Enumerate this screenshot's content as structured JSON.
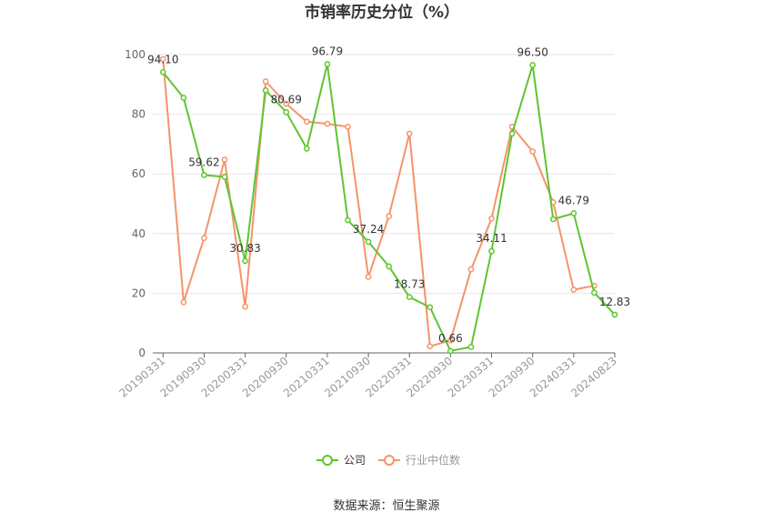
{
  "chart_data": {
    "type": "line",
    "title": "市销率历史分位（%）",
    "xlabel": "",
    "ylabel": "",
    "ylim": [
      0,
      100
    ],
    "yticks": [
      0,
      20,
      40,
      60,
      80,
      100
    ],
    "grid": true,
    "legend_position": "bottom",
    "x_tick_labels": [
      "20190331",
      "20190930",
      "20200331",
      "20200930",
      "20210331",
      "20210930",
      "20220331",
      "20220930",
      "20230331",
      "20230930",
      "20240331",
      "20240823"
    ],
    "x": [
      "20190331",
      "20190630",
      "20190930",
      "20191231",
      "20200331",
      "20200630",
      "20200930",
      "20201231",
      "20210331",
      "20210630",
      "20210930",
      "20211231",
      "20220331",
      "20220630",
      "20220930",
      "20221231",
      "20230331",
      "20230630",
      "20230930",
      "20231231",
      "20240331",
      "20240630",
      "20240823"
    ],
    "series": [
      {
        "name": "公司",
        "color": "#5ec52f",
        "values": [
          94.1,
          85.5,
          59.62,
          59.0,
          30.83,
          88.0,
          80.69,
          68.5,
          96.79,
          44.5,
          37.24,
          29.0,
          18.73,
          15.3,
          0.66,
          2.0,
          34.11,
          73.5,
          96.5,
          44.8,
          46.79,
          20.2,
          12.83
        ],
        "labels": [
          "94.10",
          null,
          "59.62",
          null,
          "30.83",
          null,
          "80.69",
          null,
          "96.79",
          null,
          "37.24",
          null,
          "18.73",
          null,
          "0.66",
          null,
          "34.11",
          null,
          "96.50",
          null,
          "46.79",
          null,
          "12.83"
        ]
      },
      {
        "name": "行业中位数",
        "color": "#f4946a",
        "values": [
          98.5,
          17.0,
          38.5,
          64.8,
          15.5,
          91.0,
          83.5,
          77.5,
          76.8,
          75.8,
          25.5,
          45.8,
          73.5,
          2.2,
          4.2,
          28.0,
          45.0,
          75.8,
          67.5,
          50.5,
          21.2,
          22.5,
          null
        ]
      }
    ]
  },
  "legend": [
    {
      "label": "公司",
      "color": "#5ec52f"
    },
    {
      "label": "行业中位数",
      "color": "#f4946a"
    }
  ],
  "source": "数据来源：恒生聚源"
}
